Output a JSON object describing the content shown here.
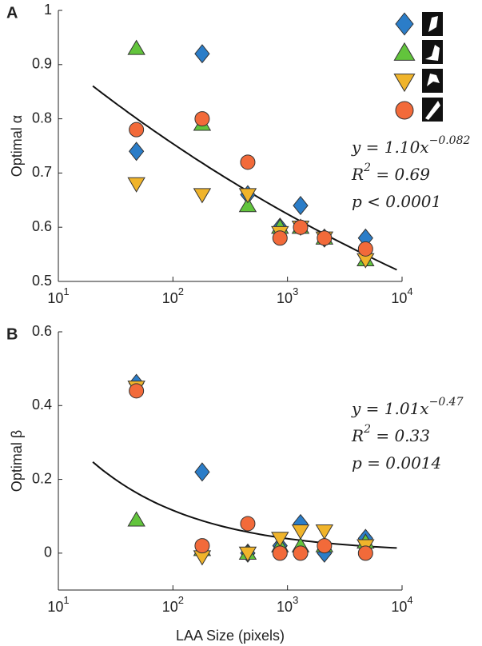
{
  "chart_data": [
    {
      "type": "scatter",
      "panel": "A",
      "ylabel": "Optimal α",
      "xscale": "log",
      "xlim": [
        10,
        10000
      ],
      "xticks": [
        {
          "value": 10,
          "label": "10",
          "sup": "1"
        },
        {
          "value": 100,
          "label": "10",
          "sup": "2"
        },
        {
          "value": 1000,
          "label": "10",
          "sup": "3"
        },
        {
          "value": 10000,
          "label": "10",
          "sup": "4"
        }
      ],
      "ylim": [
        0.5,
        1
      ],
      "yticks": [
        0.5,
        0.6,
        0.7,
        0.8,
        0.9,
        1
      ],
      "x": [
        48,
        180,
        450,
        860,
        1300,
        2100,
        4800
      ],
      "series": [
        {
          "marker": "diamond",
          "color": "#2b7dc8",
          "values": [
            0.74,
            0.92,
            0.66,
            0.6,
            0.64,
            0.58,
            0.58
          ]
        },
        {
          "marker": "triangle-up",
          "color": "#62c43c",
          "values": [
            0.93,
            0.79,
            0.64,
            0.6,
            0.6,
            0.58,
            0.54
          ]
        },
        {
          "marker": "triangle-down",
          "color": "#f0b42b",
          "values": [
            0.68,
            0.66,
            0.66,
            0.59,
            0.6,
            0.58,
            0.54
          ]
        },
        {
          "marker": "circle",
          "color": "#f26a3a",
          "values": [
            0.78,
            0.8,
            0.72,
            0.58,
            0.6,
            0.58,
            0.56
          ]
        }
      ],
      "fit": {
        "coefficient": 1.1,
        "exponent": -0.082,
        "x": [
          20,
          9000
        ]
      },
      "annotation": [
        {
          "text": "y = 1.10x",
          "sup": "−0.082"
        },
        {
          "text": "R",
          "sup": "2",
          "after": " = 0.69"
        },
        {
          "text": "p < 0.0001"
        }
      ]
    },
    {
      "type": "scatter",
      "panel": "B",
      "ylabel": "Optimal β",
      "xlabel": "LAA Size (pixels)",
      "xscale": "log",
      "xlim": [
        10,
        10000
      ],
      "xticks": [
        {
          "value": 10,
          "label": "10",
          "sup": "1"
        },
        {
          "value": 100,
          "label": "10",
          "sup": "2"
        },
        {
          "value": 1000,
          "label": "10",
          "sup": "3"
        },
        {
          "value": 10000,
          "label": "10",
          "sup": "4"
        }
      ],
      "ylim": [
        -0.1,
        0.6
      ],
      "yticks": [
        0,
        0.2,
        0.4,
        0.6
      ],
      "x": [
        48,
        180,
        450,
        860,
        1300,
        2100,
        4800
      ],
      "series": [
        {
          "marker": "diamond",
          "color": "#2b7dc8",
          "values": [
            0.46,
            0.22,
            0.0,
            0.02,
            0.08,
            0.0,
            0.04
          ]
        },
        {
          "marker": "triangle-up",
          "color": "#62c43c",
          "values": [
            0.09,
            0.01,
            0.0,
            0.02,
            0.02,
            0.02,
            0.03
          ]
        },
        {
          "marker": "triangle-down",
          "color": "#f0b42b",
          "values": [
            0.45,
            -0.01,
            0.0,
            0.04,
            0.06,
            0.06,
            0.02
          ]
        },
        {
          "marker": "circle",
          "color": "#f26a3a",
          "values": [
            0.44,
            0.02,
            0.08,
            0.0,
            0.0,
            0.02,
            0.0
          ]
        }
      ],
      "fit": {
        "coefficient": 1.01,
        "exponent": -0.47,
        "x": [
          20,
          9000
        ]
      },
      "annotation": [
        {
          "text": "y = 1.01x",
          "sup": "−0.47"
        },
        {
          "text": "R",
          "sup": "2",
          "after": " = 0.33"
        },
        {
          "text": "p = 0.0014"
        }
      ]
    }
  ]
}
